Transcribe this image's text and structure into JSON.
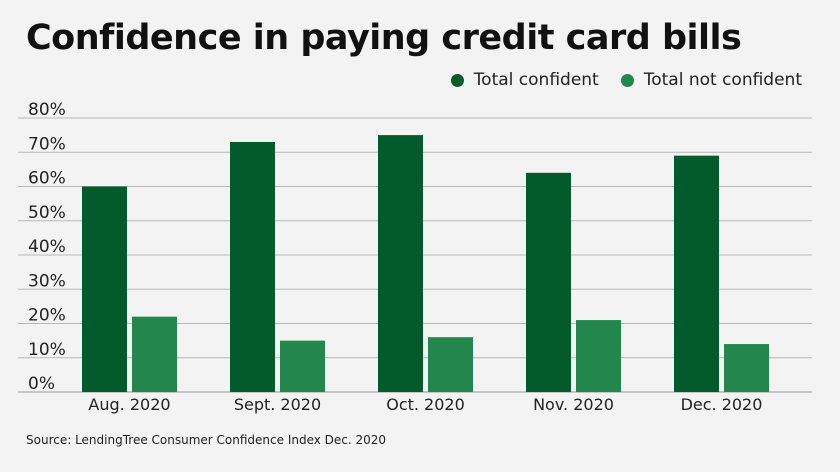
{
  "title": "Confidence in paying credit card bills",
  "source": "Source: LendingTree Consumer Confidence Index Dec. 2020",
  "colors": {
    "confident": "#035a2a",
    "not_confident": "#23874d",
    "grid": "#b8b8b8"
  },
  "chart_data": {
    "type": "bar",
    "title": "Confidence in paying credit card bills",
    "categories": [
      "Aug. 2020",
      "Sept. 2020",
      "Oct. 2020",
      "Nov. 2020",
      "Dec. 2020"
    ],
    "series": [
      {
        "name": "Total confident",
        "values": [
          60,
          73,
          75,
          64,
          69
        ]
      },
      {
        "name": "Total not confident",
        "values": [
          22,
          15,
          16,
          21,
          14
        ]
      }
    ],
    "yticks": [
      "0%",
      "10%",
      "20%",
      "30%",
      "40%",
      "50%",
      "60%",
      "70%",
      "80%"
    ],
    "ylim": [
      0,
      80
    ],
    "xlabel": "",
    "ylabel": "",
    "grid": true,
    "legend_position": "top-right"
  }
}
